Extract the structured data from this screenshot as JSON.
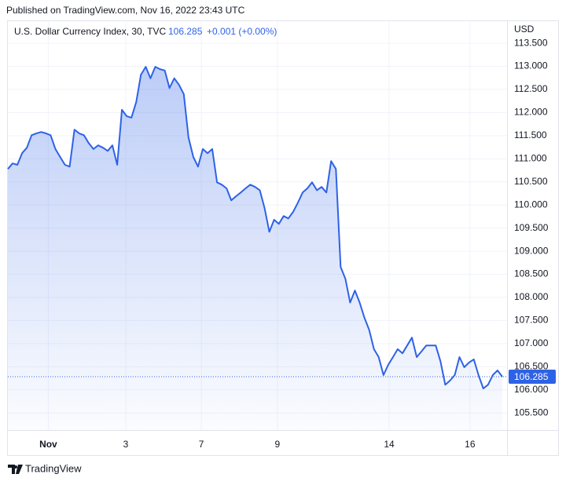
{
  "header": {
    "title": "Published on TradingView.com, Nov 16, 2022 23:43 UTC"
  },
  "footer": {
    "brand": "TradingView"
  },
  "chart_data": {
    "type": "line",
    "legend": {
      "name": "U.S. Dollar Currency Index, 30, TVC",
      "change": "+0.001 (+0.00%)"
    },
    "y_axis_label": "USD",
    "x": [
      0,
      1,
      2,
      3,
      4,
      5,
      6,
      7,
      8,
      9,
      10,
      11,
      12,
      13,
      14,
      15,
      16,
      17,
      18,
      19,
      20,
      21,
      22,
      23,
      24,
      25,
      26,
      27,
      28,
      29,
      30,
      31,
      32,
      33,
      34,
      35,
      36,
      37,
      38,
      39,
      40,
      41,
      42,
      43,
      44,
      45,
      46,
      47,
      48,
      49,
      50,
      51,
      52,
      53,
      54,
      55,
      56,
      57,
      58,
      59,
      60,
      61,
      62,
      63,
      64,
      65,
      66,
      67,
      68,
      69,
      70,
      71,
      72,
      73,
      74,
      75,
      76,
      77,
      78,
      79,
      80,
      81,
      82,
      83,
      84,
      85,
      86,
      87,
      88,
      89,
      90,
      91,
      92,
      93,
      94,
      95,
      96,
      97,
      98,
      99,
      100,
      101,
      102,
      103,
      104
    ],
    "series": [
      {
        "name": "U.S. Dollar Currency Index",
        "color": "#2e62e6",
        "values": [
          110.78,
          110.9,
          110.87,
          111.12,
          111.24,
          111.51,
          111.55,
          111.58,
          111.55,
          111.51,
          111.21,
          111.04,
          110.87,
          110.83,
          111.63,
          111.55,
          111.51,
          111.34,
          111.21,
          111.29,
          111.24,
          111.17,
          111.29,
          110.87,
          112.06,
          111.92,
          111.89,
          112.23,
          112.82,
          112.99,
          112.74,
          112.99,
          112.94,
          112.91,
          112.53,
          112.74,
          112.6,
          112.4,
          111.46,
          111.04,
          110.83,
          111.21,
          111.12,
          111.21,
          110.49,
          110.44,
          110.36,
          110.1,
          110.19,
          110.27,
          110.36,
          110.44,
          110.39,
          110.32,
          109.93,
          109.42,
          109.68,
          109.59,
          109.76,
          109.71,
          109.85,
          110.05,
          110.27,
          110.36,
          110.49,
          110.32,
          110.39,
          110.27,
          110.95,
          110.78,
          108.66,
          108.4,
          107.89,
          108.15,
          107.89,
          107.56,
          107.3,
          106.88,
          106.71,
          106.32,
          106.54,
          106.71,
          106.88,
          106.79,
          106.96,
          107.13,
          106.71,
          106.83,
          106.96,
          106.96,
          106.96,
          106.62,
          106.11,
          106.2,
          106.32,
          106.71,
          106.49,
          106.59,
          106.66,
          106.32,
          106.03,
          106.11,
          106.32,
          106.42,
          106.285
        ]
      }
    ],
    "xlim": [
      0,
      105
    ],
    "xticks": [
      {
        "value": 8.5,
        "label": "Nov"
      },
      {
        "value": 24.8,
        "label": "3"
      },
      {
        "value": 40.7,
        "label": "7"
      },
      {
        "value": 56.7,
        "label": "9"
      },
      {
        "value": 80.2,
        "label": "14"
      },
      {
        "value": 97.2,
        "label": "16"
      }
    ],
    "ylim": [
      105.13,
      113.96
    ],
    "yticks": [
      {
        "value": 105.5,
        "label": "105.500"
      },
      {
        "value": 106,
        "label": "106.000"
      },
      {
        "value": 106.5,
        "label": "106.500"
      },
      {
        "value": 107,
        "label": "107.000"
      },
      {
        "value": 107.5,
        "label": "107.500"
      },
      {
        "value": 108,
        "label": "108.000"
      },
      {
        "value": 108.5,
        "label": "108.500"
      },
      {
        "value": 109,
        "label": "109.000"
      },
      {
        "value": 109.5,
        "label": "109.500"
      },
      {
        "value": 110,
        "label": "110.000"
      },
      {
        "value": 110.5,
        "label": "110.500"
      },
      {
        "value": 111,
        "label": "111.000"
      },
      {
        "value": 111.5,
        "label": "111.500"
      },
      {
        "value": 112,
        "label": "112.000"
      },
      {
        "value": 112.5,
        "label": "112.500"
      },
      {
        "value": 113,
        "label": "113.000"
      },
      {
        "value": 113.5,
        "label": "113.500"
      }
    ],
    "grid": true
  }
}
